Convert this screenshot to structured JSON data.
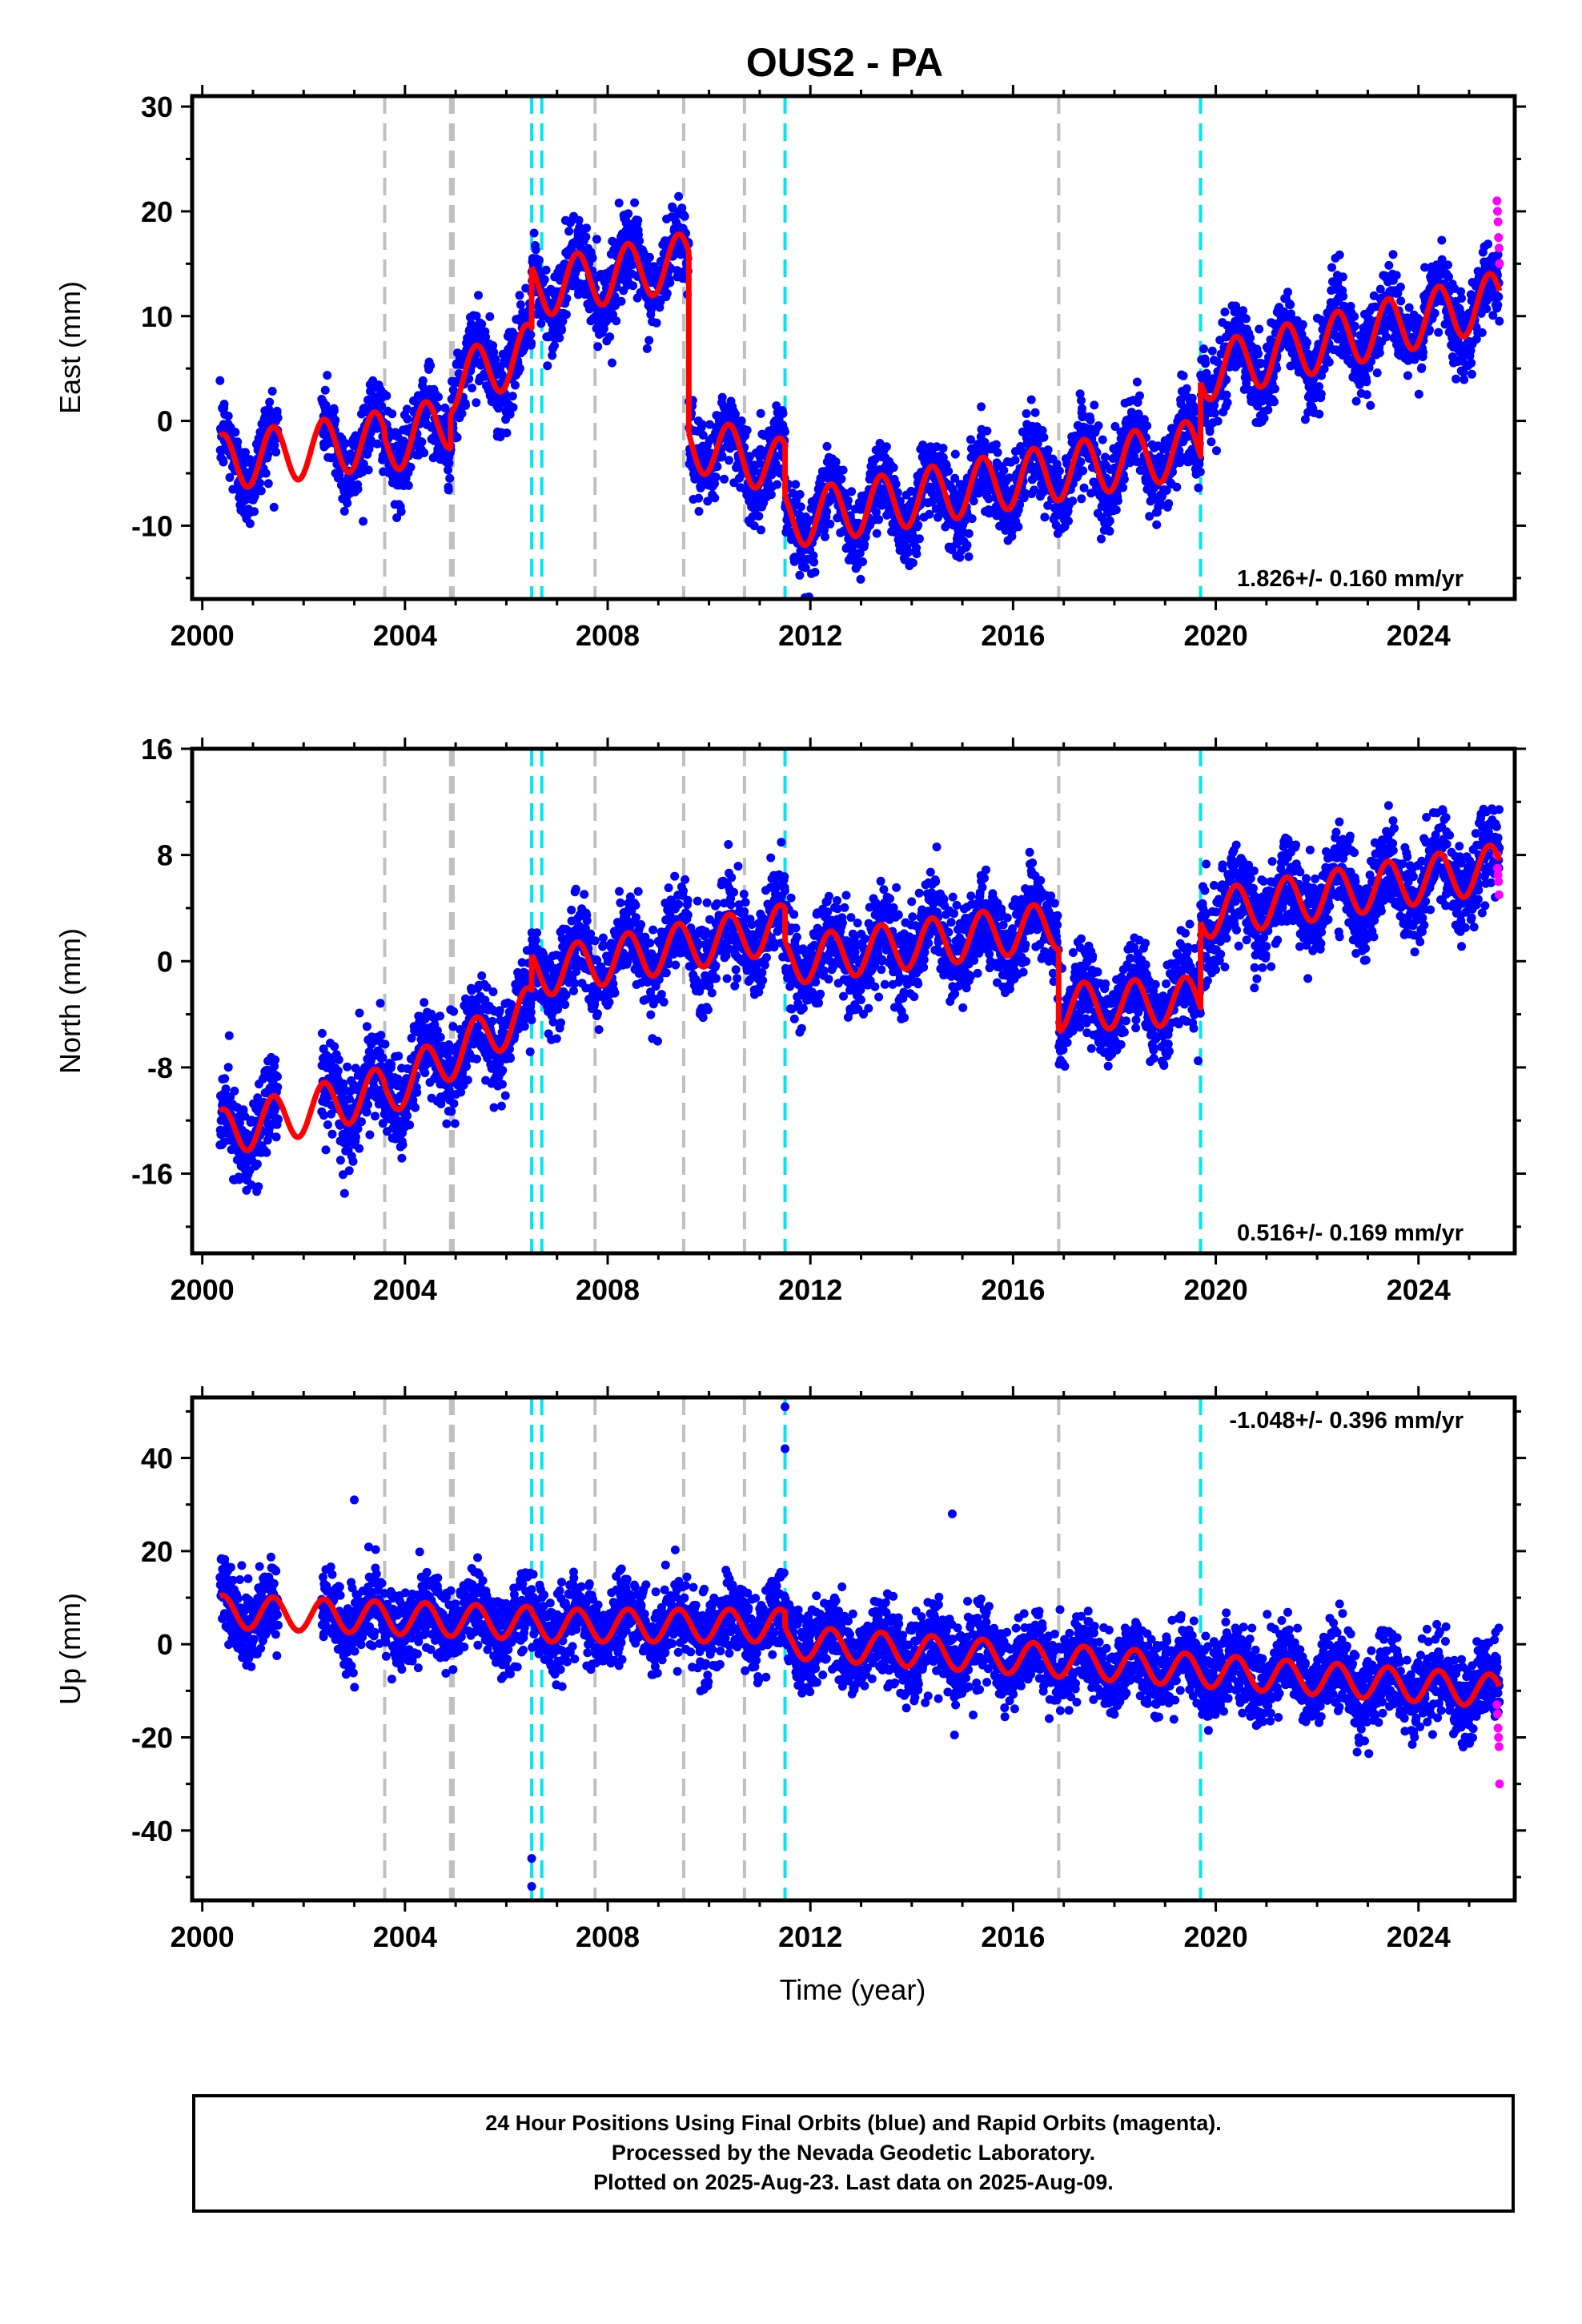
{
  "title": "OUS2 - PA",
  "xlabel": "Time (year)",
  "footer": {
    "line1": "24 Hour Positions Using Final Orbits (blue) and Rapid Orbits (magenta).",
    "line2": "Processed by the Nevada Geodetic Laboratory.",
    "line3": "Plotted on 2025-Aug-23. Last data on 2025-Aug-09."
  },
  "colors": {
    "final_points": "#0000ff",
    "rapid_points": "#ff00ff",
    "model": "#ff0000",
    "equipment_change": "#c0c0c0",
    "earthquake": "#00e5ee"
  },
  "events": {
    "gray": [
      2003.6,
      2004.9,
      2004.95,
      2007.75,
      2009.5,
      2010.7,
      2016.9
    ],
    "cyan": [
      2006.5,
      2006.7,
      2011.5,
      2019.7
    ]
  },
  "chart_data": [
    {
      "type": "scatter",
      "panel": "east",
      "ylabel": "East (mm)",
      "rate_label": "1.826+/- 0.160 mm/yr",
      "xlim": [
        1999.8,
        2025.9
      ],
      "ylim": [
        -17,
        31
      ],
      "xticks": [
        2000,
        2004,
        2008,
        2012,
        2016,
        2020,
        2024
      ],
      "yticks": [
        -10,
        0,
        10,
        20,
        30
      ],
      "segments": [
        {
          "x0": 2000.35,
          "x1": 2003.6,
          "offset": -4.0,
          "rate": 0.7
        },
        {
          "x0": 2003.6,
          "x1": 2004.9,
          "offset": -2.5,
          "rate": 2.0
        },
        {
          "x0": 2004.9,
          "x1": 2006.5,
          "offset": 3.5,
          "rate": 2.0
        },
        {
          "x0": 2006.5,
          "x1": 2009.6,
          "offset": 12.5,
          "rate": 0.9
        },
        {
          "x0": 2009.6,
          "x1": 2011.5,
          "offset": -2.0,
          "rate": -1.3
        },
        {
          "x0": 2011.5,
          "x1": 2019.7,
          "offset": -9.5,
          "rate": 0.85
        },
        {
          "x0": 2019.7,
          "x1": 2025.6,
          "offset": 4.5,
          "rate": 1.2
        }
      ],
      "seasonal_amplitude": 2.7,
      "scatter_sd": 1.9,
      "rapid_points": [
        {
          "x": 2025.55,
          "y": 21.0
        },
        {
          "x": 2025.56,
          "y": 20.0
        },
        {
          "x": 2025.57,
          "y": 19.0
        },
        {
          "x": 2025.58,
          "y": 17.5
        },
        {
          "x": 2025.59,
          "y": 16.5
        },
        {
          "x": 2025.6,
          "y": 15.0
        }
      ]
    },
    {
      "type": "scatter",
      "panel": "north",
      "ylabel": "North (mm)",
      "rate_label": "0.516+/- 0.169 mm/yr",
      "xlim": [
        1999.8,
        2025.9
      ],
      "ylim": [
        -22,
        16
      ],
      "xticks": [
        2000,
        2004,
        2008,
        2012,
        2016,
        2020,
        2024
      ],
      "yticks": [
        -16,
        -8,
        0,
        8,
        16
      ],
      "segments": [
        {
          "x0": 2000.35,
          "x1": 2003.6,
          "offset": -13.0,
          "rate": 1.0
        },
        {
          "x0": 2003.6,
          "x1": 2006.5,
          "offset": -10.0,
          "rate": 2.2
        },
        {
          "x0": 2006.5,
          "x1": 2011.5,
          "offset": -1.0,
          "rate": 0.7
        },
        {
          "x0": 2011.5,
          "x1": 2016.9,
          "offset": 0.0,
          "rate": 0.5
        },
        {
          "x0": 2016.9,
          "x1": 2019.7,
          "offset": -3.5,
          "rate": 0.2
        },
        {
          "x0": 2019.7,
          "x1": 2025.6,
          "offset": 3.5,
          "rate": 0.6
        }
      ],
      "seasonal_amplitude": 1.8,
      "scatter_sd": 1.7,
      "rapid_points": [
        {
          "x": 2025.55,
          "y": 8.0
        },
        {
          "x": 2025.56,
          "y": 7.0
        },
        {
          "x": 2025.57,
          "y": 6.5
        },
        {
          "x": 2025.58,
          "y": 6.0
        },
        {
          "x": 2025.59,
          "y": 5.0
        }
      ]
    },
    {
      "type": "scatter",
      "panel": "up",
      "ylabel": "Up (mm)",
      "rate_label": "-1.048+/- 0.396 mm/yr",
      "xlim": [
        1999.8,
        2025.9
      ],
      "ylim": [
        -55,
        53
      ],
      "xticks": [
        2000,
        2004,
        2008,
        2012,
        2016,
        2020,
        2024
      ],
      "yticks": [
        -40,
        -20,
        0,
        20,
        40
      ],
      "segments": [
        {
          "x0": 2000.35,
          "x1": 2006.5,
          "offset": 7.0,
          "rate": -0.4
        },
        {
          "x0": 2006.5,
          "x1": 2011.5,
          "offset": 4.0,
          "rate": 0.0
        },
        {
          "x0": 2011.5,
          "x1": 2025.6,
          "offset": 0.5,
          "rate": -0.75
        }
      ],
      "seasonal_amplitude": 3.5,
      "scatter_sd": 4.2,
      "rapid_points": [
        {
          "x": 2025.55,
          "y": -13.0
        },
        {
          "x": 2025.56,
          "y": -15.0
        },
        {
          "x": 2025.57,
          "y": -18.0
        },
        {
          "x": 2025.58,
          "y": -20.0
        },
        {
          "x": 2025.59,
          "y": -22.0
        },
        {
          "x": 2025.6,
          "y": -30.0
        }
      ],
      "outliers": [
        {
          "x": 2006.5,
          "y": -46.0
        },
        {
          "x": 2006.5,
          "y": -52.0
        },
        {
          "x": 2011.5,
          "y": 51.0
        },
        {
          "x": 2011.5,
          "y": 42.0
        },
        {
          "x": 2003.0,
          "y": 31.0
        },
        {
          "x": 2014.8,
          "y": 28.0
        }
      ]
    }
  ]
}
